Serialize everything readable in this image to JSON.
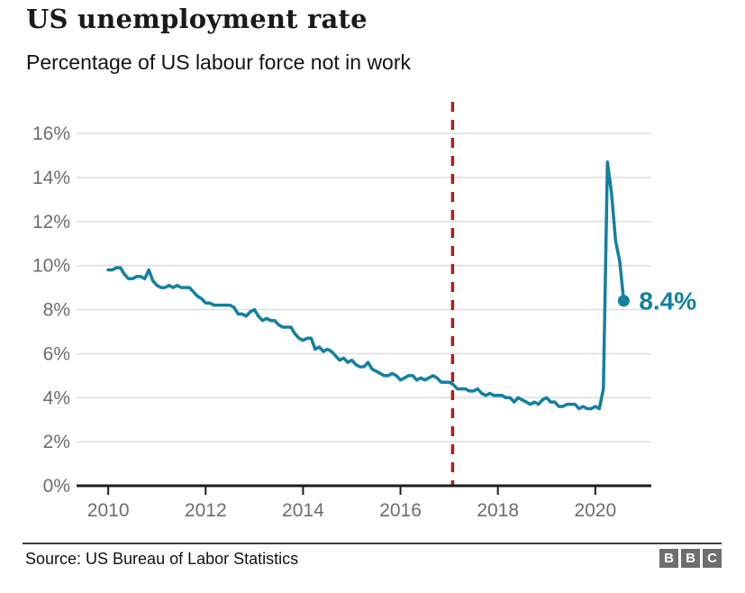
{
  "header": {
    "title": "US unemployment rate",
    "subtitle": "Percentage of US labour force not in work"
  },
  "footer": {
    "source": "Source: US Bureau of Labor Statistics",
    "logo": [
      "B",
      "B",
      "C"
    ]
  },
  "chart_data": {
    "type": "line",
    "title": "US unemployment rate",
    "subtitle": "Percentage of US labour force not in work",
    "xlabel": "",
    "ylabel": "",
    "ylim": [
      0,
      16
    ],
    "xlim": [
      2009.35,
      2021.15
    ],
    "grid": true,
    "legend": "none",
    "y_ticks": [
      {
        "value": 0,
        "label": "0%"
      },
      {
        "value": 2,
        "label": "2%"
      },
      {
        "value": 4,
        "label": "4%"
      },
      {
        "value": 6,
        "label": "6%"
      },
      {
        "value": 8,
        "label": "8%"
      },
      {
        "value": 10,
        "label": "10%"
      },
      {
        "value": 12,
        "label": "12%"
      },
      {
        "value": 14,
        "label": "14%"
      },
      {
        "value": 16,
        "label": "16%"
      }
    ],
    "x_ticks": [
      {
        "value": 2010,
        "label": "2010"
      },
      {
        "value": 2012,
        "label": "2012"
      },
      {
        "value": 2014,
        "label": "2014"
      },
      {
        "value": 2016,
        "label": "2016"
      },
      {
        "value": 2018,
        "label": "2018"
      },
      {
        "value": 2020,
        "label": "2020"
      }
    ],
    "series": [
      {
        "name": "US unemployment rate",
        "start_year": 2010,
        "frequency": "monthly",
        "values": [
          9.8,
          9.8,
          9.9,
          9.9,
          9.6,
          9.4,
          9.4,
          9.5,
          9.5,
          9.4,
          9.8,
          9.3,
          9.1,
          9.0,
          9.0,
          9.1,
          9.0,
          9.1,
          9.0,
          9.0,
          9.0,
          8.8,
          8.6,
          8.5,
          8.3,
          8.3,
          8.2,
          8.2,
          8.2,
          8.2,
          8.2,
          8.1,
          7.8,
          7.8,
          7.7,
          7.9,
          8.0,
          7.7,
          7.5,
          7.6,
          7.5,
          7.5,
          7.3,
          7.2,
          7.2,
          7.2,
          6.9,
          6.7,
          6.6,
          6.7,
          6.7,
          6.2,
          6.3,
          6.1,
          6.2,
          6.1,
          5.9,
          5.7,
          5.8,
          5.6,
          5.7,
          5.5,
          5.4,
          5.4,
          5.6,
          5.3,
          5.2,
          5.1,
          5.0,
          5.0,
          5.1,
          5.0,
          4.8,
          4.9,
          5.0,
          5.0,
          4.8,
          4.9,
          4.8,
          4.9,
          5.0,
          4.9,
          4.7,
          4.7,
          4.7,
          4.6,
          4.4,
          4.4,
          4.4,
          4.3,
          4.3,
          4.4,
          4.2,
          4.1,
          4.2,
          4.1,
          4.1,
          4.1,
          4.0,
          4.0,
          3.8,
          4.0,
          3.9,
          3.8,
          3.7,
          3.8,
          3.7,
          3.9,
          4.0,
          3.8,
          3.8,
          3.6,
          3.6,
          3.7,
          3.7,
          3.7,
          3.5,
          3.6,
          3.5,
          3.5,
          3.6,
          3.5,
          4.4,
          14.7,
          13.3,
          11.1,
          10.2,
          8.4
        ]
      }
    ],
    "reference_line": {
      "x": 2017.07,
      "style": "dashed",
      "color": "#a8201f"
    },
    "annotation": {
      "text": "8.4%",
      "x": 2020.583,
      "y": 8.4
    },
    "colors": {
      "line": "#1380a1",
      "end_dot": "#1380a1",
      "annotation_text": "#1380a1",
      "gridline": "#dcdcdc",
      "axis": "#1c1c1c",
      "tick_label": "#6d6d6d"
    },
    "end_dot": true
  }
}
